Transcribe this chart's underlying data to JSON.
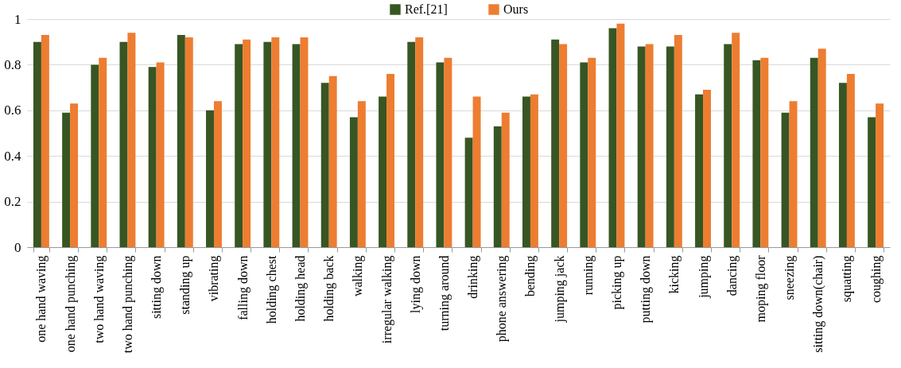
{
  "chart_data": {
    "type": "bar",
    "categories": [
      "one hand waving",
      "one hand punching",
      "two hand waving",
      "two hand punching",
      "sitting down",
      "standing up",
      "vibrating",
      "falling down",
      "holding chest",
      "holding head",
      "holding back",
      "walking",
      "irregular walking",
      "lying down",
      "turning around",
      "drinking",
      "phone answering",
      "bending",
      "jumping jack",
      "running",
      "picking up",
      "putting down",
      "kicking",
      "jumping",
      "dancing",
      "moping floor",
      "sneezing",
      "sitting down(chair)",
      "squatting",
      "coughing"
    ],
    "series": [
      {
        "name": "Ref.[21]",
        "color": "#375623",
        "values": [
          0.9,
          0.59,
          0.8,
          0.9,
          0.79,
          0.93,
          0.6,
          0.89,
          0.9,
          0.89,
          0.72,
          0.57,
          0.66,
          0.9,
          0.81,
          0.48,
          0.53,
          0.66,
          0.91,
          0.81,
          0.96,
          0.88,
          0.88,
          0.67,
          0.89,
          0.82,
          0.59,
          0.83,
          0.72,
          0.57
        ]
      },
      {
        "name": "Ours",
        "color": "#ed7d31",
        "values": [
          0.93,
          0.63,
          0.83,
          0.94,
          0.81,
          0.92,
          0.64,
          0.91,
          0.92,
          0.92,
          0.75,
          0.64,
          0.76,
          0.92,
          0.83,
          0.66,
          0.59,
          0.67,
          0.89,
          0.83,
          0.98,
          0.89,
          0.93,
          0.69,
          0.94,
          0.83,
          0.64,
          0.87,
          0.76,
          0.63
        ]
      }
    ],
    "ylim": [
      0,
      1
    ],
    "yticks": [
      0,
      0.2,
      0.4,
      0.6,
      0.8,
      1
    ],
    "grid": "y",
    "legend": "top"
  }
}
